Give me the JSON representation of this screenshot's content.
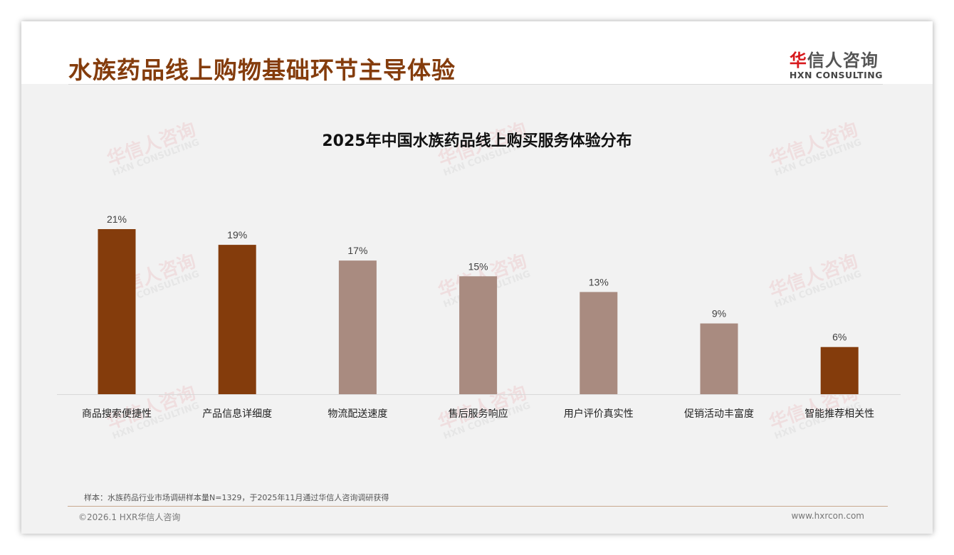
{
  "header": {
    "title": "水族药品线上购物基础环节主导体验",
    "logo_cn_red": "华",
    "logo_cn": "信人咨询",
    "logo_en": "HXN CONSULTING"
  },
  "watermark": {
    "cn": "华信人咨询",
    "en": "HXN CONSULTING"
  },
  "chart_data": {
    "type": "bar",
    "title": "2025年中国水族药品线上购买服务体验分布",
    "categories": [
      "商品搜索便捷性",
      "产品信息详细度",
      "物流配送速度",
      "售后服务响应",
      "用户评价真实性",
      "促销活动丰富度",
      "智能推荐相关性"
    ],
    "values": [
      21,
      19,
      17,
      15,
      13,
      9,
      6
    ],
    "labels": [
      "21%",
      "19%",
      "17%",
      "15%",
      "13%",
      "9%",
      "6%"
    ],
    "highlight": [
      true,
      true,
      false,
      false,
      false,
      false,
      true
    ],
    "colors": {
      "highlight": "#843c0c",
      "normal": "#a98b80"
    },
    "ylim": [
      0,
      21
    ],
    "xlabel": "",
    "ylabel": ""
  },
  "footer": {
    "note": "样本：水族药品行业市场调研样本量N=1329，于2025年11月通过华信人咨询调研获得",
    "copyright": "©2026.1 HXR华信人咨询",
    "url": "www.hxrcon.com"
  }
}
